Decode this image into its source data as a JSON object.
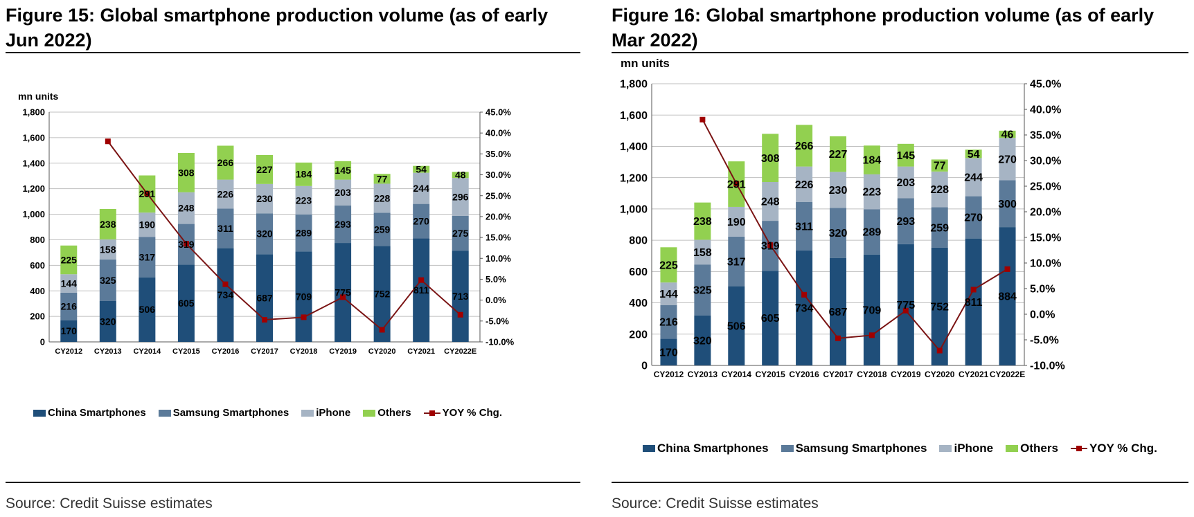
{
  "colors": {
    "china": "#1f4e79",
    "samsung": "#5b7a99",
    "iphone": "#a6b4c4",
    "others": "#92d050",
    "yoy_line": "#7b1414",
    "yoy_marker": "#a00000",
    "grid": "#bfbfbf"
  },
  "figures": [
    {
      "title": "Figure 15: Global smartphone production volume (as of early Jun 2022)",
      "source": "Source: Credit Suisse estimates"
    },
    {
      "title": "Figure 16: Global smartphone production volume (as of early Mar 2022)",
      "source": "Source: Credit Suisse estimates"
    }
  ],
  "chart_data": [
    {
      "type": "bar",
      "stacked": true,
      "ylabel": "mn units",
      "ylim": [
        0,
        1800
      ],
      "y_ticks": [
        "0",
        "200",
        "400",
        "600",
        "800",
        "1,000",
        "1,200",
        "1,400",
        "1,600",
        "1,800"
      ],
      "y2lim": [
        -10,
        45
      ],
      "y2_ticks": [
        "-10.0%",
        "-5.0%",
        "0.0%",
        "5.0%",
        "10.0%",
        "15.0%",
        "20.0%",
        "25.0%",
        "30.0%",
        "35.0%",
        "40.0%",
        "45.0%"
      ],
      "categories": [
        "CY2012",
        "CY2013",
        "CY2014",
        "CY2015",
        "CY2016",
        "CY2017",
        "CY2018",
        "CY2019",
        "CY2020",
        "CY2021",
        "CY2022E"
      ],
      "grid": true,
      "legend_position": "bottom",
      "series": [
        {
          "name": "China Smartphones",
          "values": [
            170,
            320,
            506,
            605,
            734,
            687,
            709,
            775,
            752,
            811,
            713
          ]
        },
        {
          "name": "Samsung Smartphones",
          "values": [
            216,
            325,
            317,
            319,
            311,
            320,
            289,
            293,
            259,
            270,
            275
          ]
        },
        {
          "name": "iPhone",
          "values": [
            144,
            158,
            190,
            248,
            226,
            230,
            223,
            203,
            228,
            244,
            296
          ]
        },
        {
          "name": "Others",
          "values": [
            225,
            238,
            291,
            308,
            266,
            227,
            184,
            145,
            77,
            54,
            48
          ]
        }
      ],
      "line": {
        "name": "YOY % Chg.",
        "values": [
          null,
          38.0,
          25.5,
          13.5,
          3.8,
          -4.7,
          -4.1,
          0.7,
          -7.1,
          4.8,
          -3.5
        ]
      }
    },
    {
      "type": "bar",
      "stacked": true,
      "ylabel": "mn units",
      "ylim": [
        0,
        1800
      ],
      "y_ticks": [
        "0",
        "200",
        "400",
        "600",
        "800",
        "1,000",
        "1,200",
        "1,400",
        "1,600",
        "1,800"
      ],
      "y2lim": [
        -10,
        45
      ],
      "y2_ticks": [
        "-10.0%",
        "-5.0%",
        "0.0%",
        "5.0%",
        "10.0%",
        "15.0%",
        "20.0%",
        "25.0%",
        "30.0%",
        "35.0%",
        "40.0%",
        "45.0%"
      ],
      "categories": [
        "CY2012",
        "CY2013",
        "CY2014",
        "CY2015",
        "CY2016",
        "CY2017",
        "CY2018",
        "CY2019",
        "CY2020",
        "CY2021",
        "CY2022E"
      ],
      "grid": true,
      "legend_position": "bottom",
      "series": [
        {
          "name": "China Smartphones",
          "values": [
            170,
            320,
            506,
            605,
            734,
            687,
            709,
            775,
            752,
            811,
            884
          ]
        },
        {
          "name": "Samsung Smartphones",
          "values": [
            216,
            325,
            317,
            319,
            311,
            320,
            289,
            293,
            259,
            270,
            300
          ]
        },
        {
          "name": "iPhone",
          "values": [
            144,
            158,
            190,
            248,
            226,
            230,
            223,
            203,
            228,
            244,
            270
          ]
        },
        {
          "name": "Others",
          "values": [
            225,
            238,
            291,
            308,
            266,
            227,
            184,
            145,
            77,
            54,
            46
          ]
        }
      ],
      "line": {
        "name": "YOY % Chg.",
        "values": [
          null,
          38.0,
          25.5,
          13.5,
          3.8,
          -4.7,
          -4.1,
          0.7,
          -7.1,
          4.8,
          8.8
        ]
      }
    }
  ]
}
